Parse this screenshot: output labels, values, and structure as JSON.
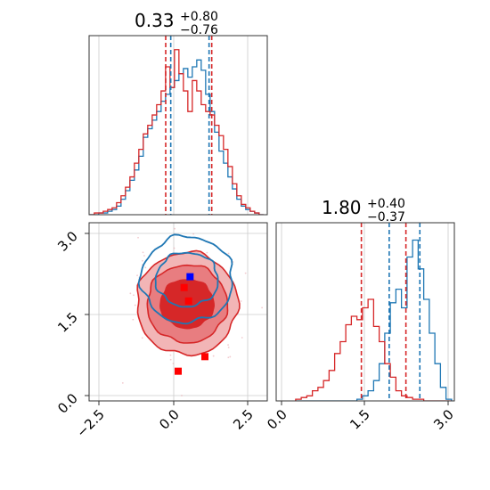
{
  "chart_data": [
    {
      "type": "histogram",
      "panel": "top-left",
      "title": {
        "value": "0.33",
        "upper": "+0.80",
        "lower": "−0.76"
      },
      "xlim": [
        -3,
        3
      ],
      "grid": true,
      "bins_x": [
        -2.9,
        -2.75,
        -2.6,
        -2.45,
        -2.3,
        -2.15,
        -2.0,
        -1.85,
        -1.7,
        -1.55,
        -1.4,
        -1.25,
        -1.1,
        -0.95,
        -0.8,
        -0.65,
        -0.5,
        -0.35,
        -0.2,
        -0.05,
        0.1,
        0.25,
        0.4,
        0.55,
        0.7,
        0.85,
        1.0,
        1.15,
        1.3,
        1.45,
        1.6,
        1.75,
        1.9,
        2.05,
        2.2,
        2.35,
        2.5,
        2.65,
        2.8
      ],
      "series": [
        {
          "color": "#1f77b4",
          "values": [
            0,
            0,
            0.01,
            0.01,
            0.02,
            0.03,
            0.05,
            0.09,
            0.14,
            0.2,
            0.26,
            0.34,
            0.45,
            0.5,
            0.55,
            0.6,
            0.66,
            0.7,
            0.74,
            0.78,
            0.82,
            0.85,
            0.8,
            0.86,
            0.9,
            0.84,
            0.7,
            0.6,
            0.48,
            0.37,
            0.3,
            0.22,
            0.15,
            0.09,
            0.05,
            0.03,
            0.02,
            0.01,
            0
          ]
        },
        {
          "color": "#d62728",
          "values": [
            0,
            0.01,
            0.01,
            0.02,
            0.03,
            0.04,
            0.07,
            0.11,
            0.16,
            0.22,
            0.3,
            0.38,
            0.47,
            0.52,
            0.58,
            0.64,
            0.72,
            0.86,
            0.74,
            0.96,
            0.82,
            0.72,
            0.6,
            0.78,
            0.72,
            0.64,
            0.6,
            0.58,
            0.52,
            0.46,
            0.38,
            0.28,
            0.18,
            0.11,
            0.06,
            0.04,
            0.02,
            0.01,
            0
          ]
        }
      ],
      "quantile_lines": [
        {
          "color": "#d62728",
          "x": [
            -0.42,
            1.13
          ]
        },
        {
          "color": "#1f77b4",
          "x": [
            -0.25,
            1.04
          ]
        }
      ]
    },
    {
      "type": "contour",
      "panel": "bottom-left",
      "xlim": [
        -3,
        3
      ],
      "ylim": [
        -0.1,
        3.2
      ],
      "xticks": [
        "−2.5",
        "0.0",
        "2.5"
      ],
      "yticks": [
        "0.0",
        "1.5",
        "3.0"
      ],
      "grid": true,
      "contour_blue": {
        "color": "#1f77b4",
        "center": [
          0.3,
          2.15
        ],
        "radii": [
          [
            1.05,
            0.5
          ],
          [
            1.55,
            0.8
          ]
        ]
      },
      "contour_red": {
        "color": "#d62728",
        "center": [
          0.3,
          1.7
        ],
        "radii": [
          [
            0.9,
            0.45
          ],
          [
            1.35,
            0.72
          ],
          [
            1.7,
            0.95
          ]
        ]
      },
      "points_red": [
        [
          0.2,
          2.0
        ],
        [
          0.35,
          1.75
        ],
        [
          0.0,
          0.45
        ],
        [
          0.9,
          0.72
        ]
      ],
      "points_blue": [
        [
          0.4,
          2.2
        ]
      ]
    },
    {
      "type": "histogram",
      "panel": "bottom-right",
      "title": {
        "value": "1.80",
        "upper": "+0.40",
        "lower": "−0.37"
      },
      "xlim": [
        -0.1,
        3.1
      ],
      "xticks": [
        "0.0",
        "1.5",
        "3.0"
      ],
      "grid": true,
      "bins_x": [
        0.3,
        0.4,
        0.5,
        0.6,
        0.7,
        0.8,
        0.9,
        1.0,
        1.1,
        1.2,
        1.3,
        1.4,
        1.5,
        1.6,
        1.7,
        1.8,
        1.9,
        2.0,
        2.1,
        2.2,
        2.3,
        2.4,
        2.5,
        2.6,
        2.7,
        2.8,
        2.9,
        3.0
      ],
      "series": [
        {
          "color": "#1f77b4",
          "values": [
            0,
            0,
            0,
            0,
            0,
            0,
            0,
            0,
            0,
            0,
            0,
            0.01,
            0.03,
            0.06,
            0.12,
            0.22,
            0.4,
            0.58,
            0.66,
            0.55,
            0.85,
            0.95,
            0.78,
            0.6,
            0.4,
            0.22,
            0.08,
            0.01
          ]
        },
        {
          "color": "#d62728",
          "values": [
            0.01,
            0.02,
            0.03,
            0.06,
            0.08,
            0.12,
            0.18,
            0.28,
            0.35,
            0.45,
            0.5,
            0.48,
            0.55,
            0.6,
            0.44,
            0.35,
            0.22,
            0.14,
            0.06,
            0.03,
            0.02,
            0.01,
            0.01,
            0,
            0,
            0,
            0,
            0
          ]
        }
      ],
      "quantile_lines": [
        {
          "color": "#d62728",
          "x": [
            1.43,
            2.23
          ]
        },
        {
          "color": "#1f77b4",
          "x": [
            1.93,
            2.48
          ]
        }
      ]
    }
  ]
}
